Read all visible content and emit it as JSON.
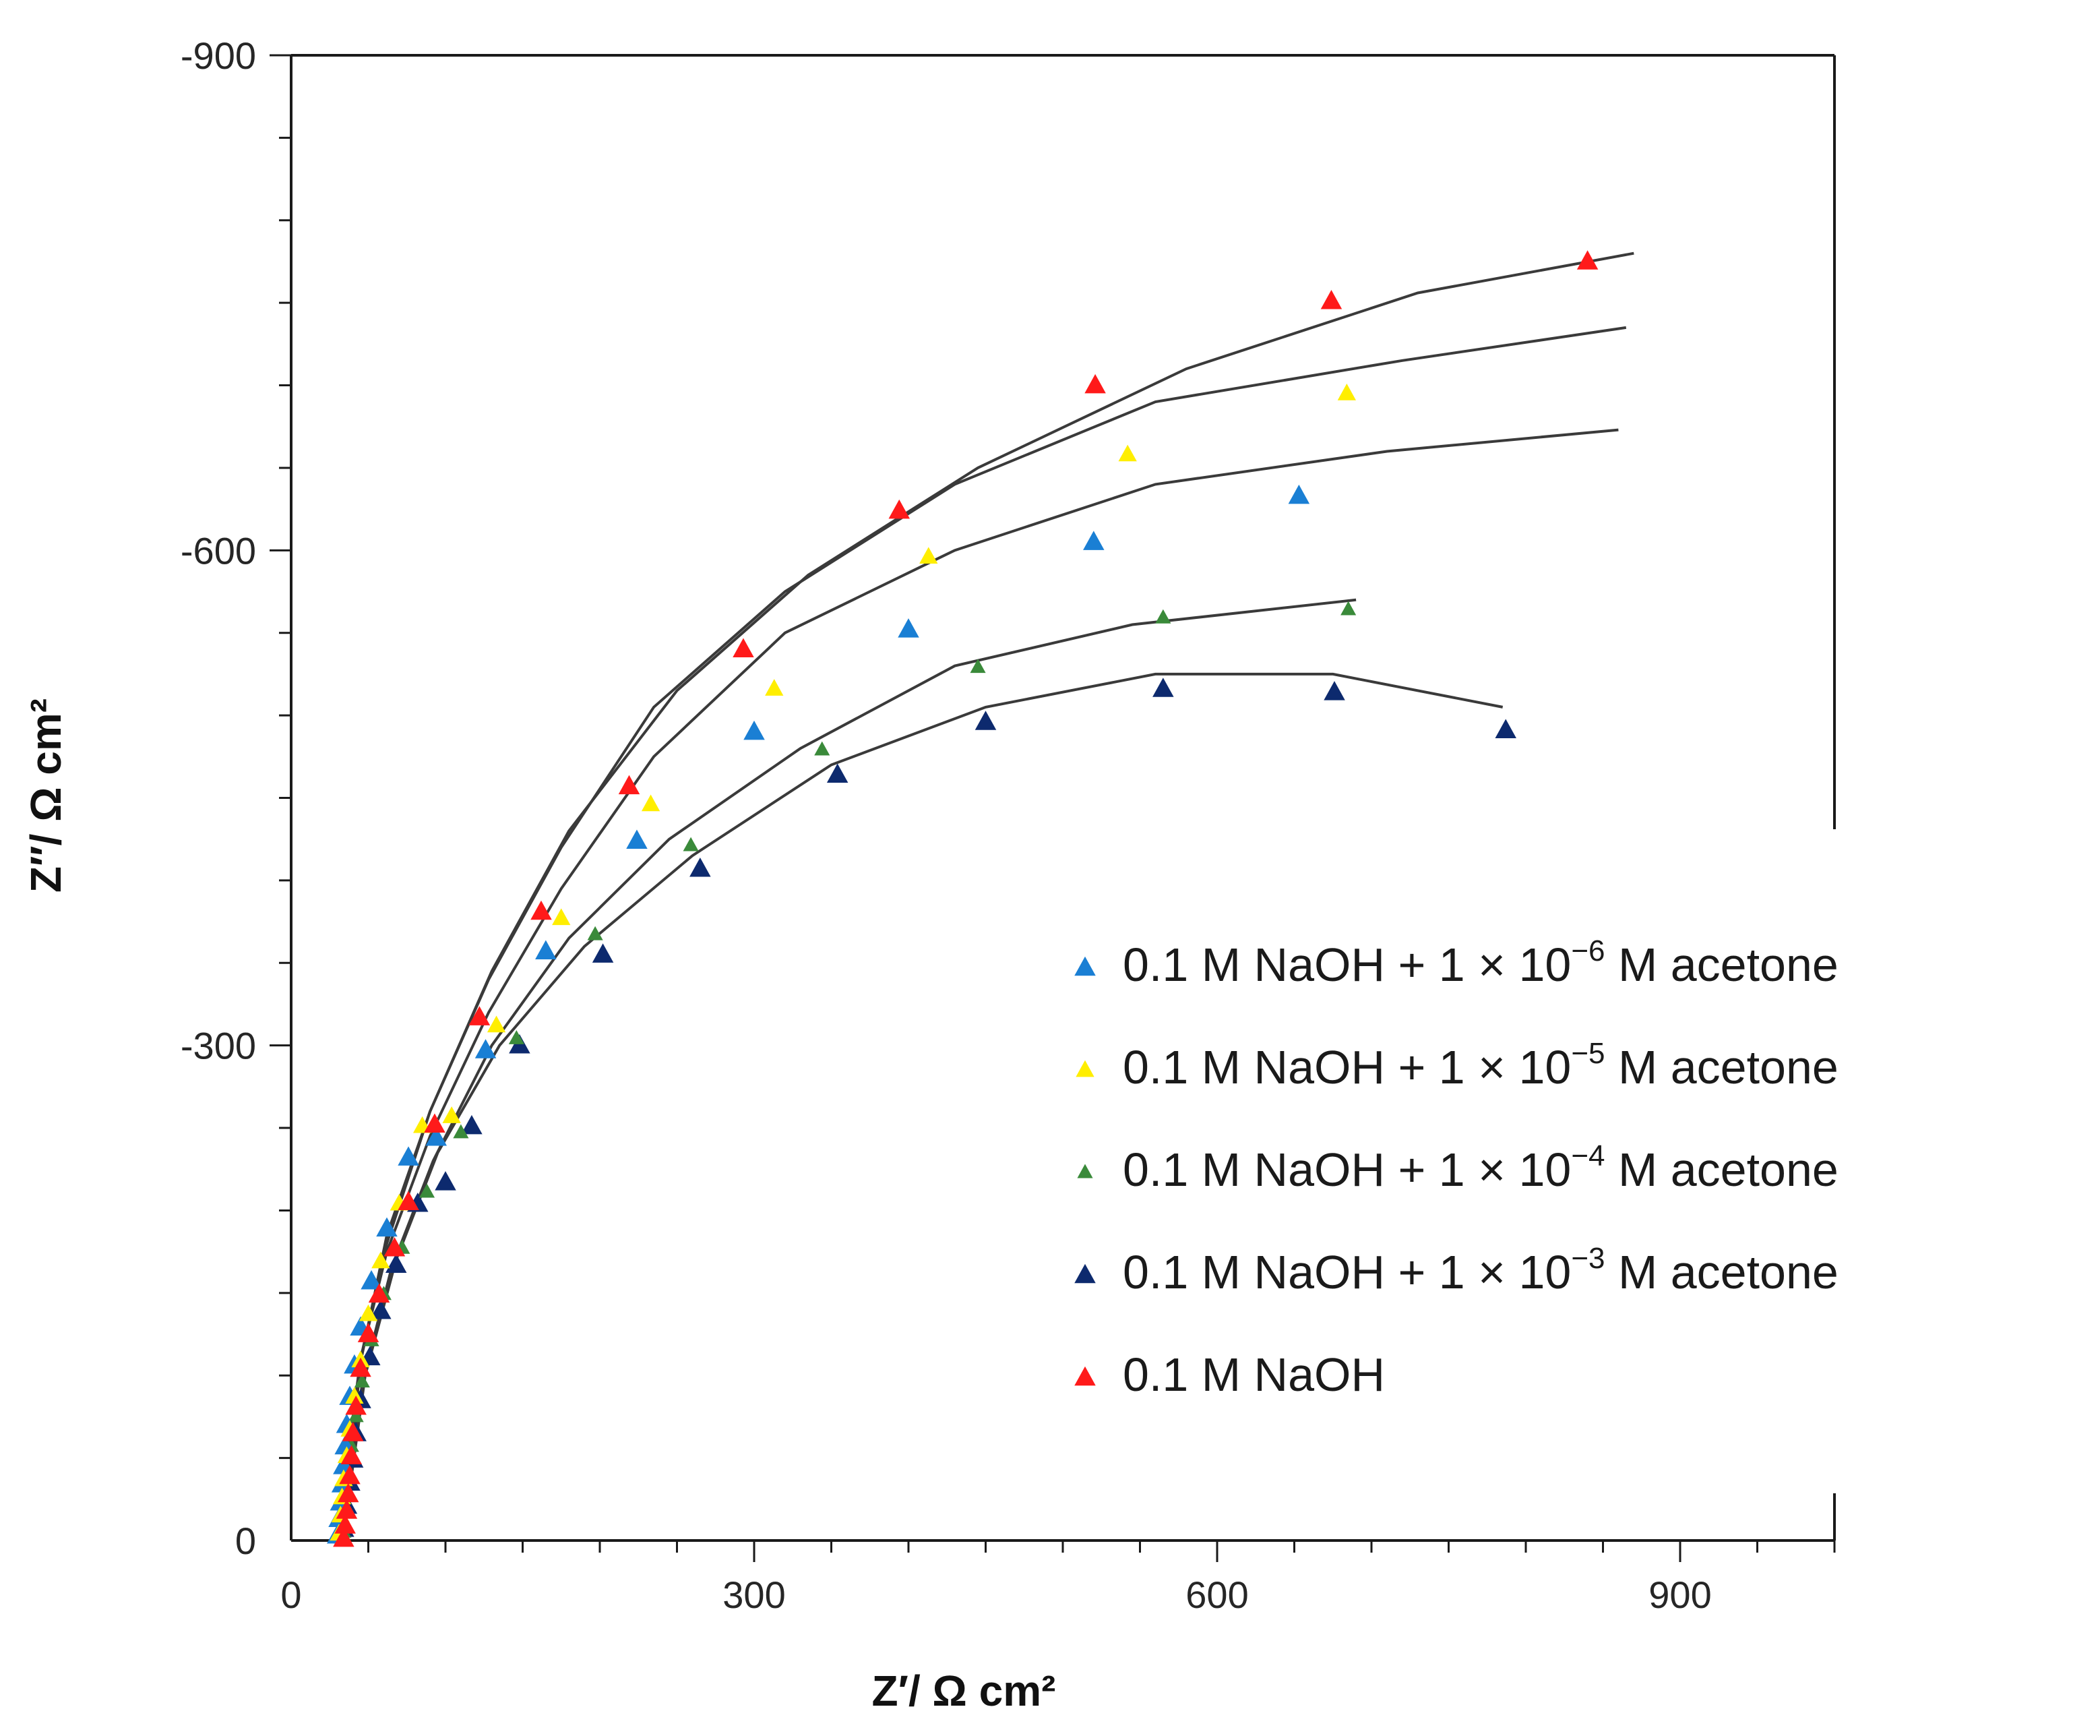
{
  "chart_data": {
    "type": "scatter",
    "title": "",
    "xlabel": "Z′/ Ω cm²",
    "ylabel": "Z″/ Ω cm²",
    "xlim": [
      0,
      1000
    ],
    "ylim": [
      0,
      -900
    ],
    "x_ticks": [
      0,
      300,
      600,
      900
    ],
    "y_ticks": [
      0,
      -300,
      -600,
      -900
    ],
    "x_tick_labels": [
      "0",
      "300",
      "600",
      "900"
    ],
    "y_tick_labels": [
      "0",
      "-300",
      "-600",
      "-900"
    ],
    "legend_position": "lower-right",
    "series": [
      {
        "name": "0.1 M NaOH + 1 × 10⁻⁶ M acetone",
        "legend_prefix": "0.1 M NaOH + 1 × 10",
        "legend_exp": "−6",
        "legend_suffix": " M acetone",
        "color": "#1a7fd4",
        "marker_size": 30,
        "points": [
          [
            30,
            -4
          ],
          [
            31,
            -14
          ],
          [
            32,
            -24
          ],
          [
            33,
            -35
          ],
          [
            34,
            -46
          ],
          [
            35,
            -58
          ],
          [
            36,
            -71
          ],
          [
            38,
            -88
          ],
          [
            41,
            -107
          ],
          [
            45,
            -130
          ],
          [
            52,
            -158
          ],
          [
            62,
            -190
          ],
          [
            76,
            -233
          ],
          [
            94,
            -245
          ],
          [
            126,
            -298
          ],
          [
            165,
            -358
          ],
          [
            224,
            -425
          ],
          [
            300,
            -491
          ],
          [
            400,
            -553
          ],
          [
            520,
            -606
          ],
          [
            653,
            -634
          ]
        ],
        "fit": [
          [
            30,
            -4
          ],
          [
            45,
            -110
          ],
          [
            62,
            -175
          ],
          [
            90,
            -245
          ],
          [
            128,
            -320
          ],
          [
            175,
            -395
          ],
          [
            235,
            -475
          ],
          [
            320,
            -550
          ],
          [
            430,
            -600
          ],
          [
            560,
            -640
          ],
          [
            710,
            -660
          ],
          [
            860,
            -673
          ]
        ]
      },
      {
        "name": "0.1 M NaOH + 1 × 10⁻⁵ M acetone",
        "legend_prefix": "0.1 M NaOH + 1 × 10",
        "legend_exp": "−5",
        "legend_suffix": " M acetone",
        "color": "#ffee00",
        "marker_size": 26,
        "points": [
          [
            31,
            -5
          ],
          [
            32,
            -16
          ],
          [
            33,
            -27
          ],
          [
            34,
            -38
          ],
          [
            36,
            -52
          ],
          [
            38,
            -68
          ],
          [
            41,
            -88
          ],
          [
            45,
            -110
          ],
          [
            50,
            -138
          ],
          [
            58,
            -170
          ],
          [
            70,
            -205
          ],
          [
            85,
            -252
          ],
          [
            104,
            -258
          ],
          [
            133,
            -313
          ],
          [
            175,
            -378
          ],
          [
            233,
            -447
          ],
          [
            313,
            -517
          ],
          [
            413,
            -597
          ],
          [
            542,
            -659
          ],
          [
            684,
            -696
          ]
        ],
        "fit": [
          [
            31,
            -4
          ],
          [
            45,
            -110
          ],
          [
            62,
            -180
          ],
          [
            90,
            -260
          ],
          [
            128,
            -340
          ],
          [
            175,
            -420
          ],
          [
            235,
            -505
          ],
          [
            320,
            -575
          ],
          [
            430,
            -640
          ],
          [
            560,
            -690
          ],
          [
            720,
            -715
          ],
          [
            865,
            -735
          ]
        ]
      },
      {
        "name": "0.1 M NaOH + 1 × 10⁻⁴ M acetone",
        "legend_prefix": "0.1 M NaOH + 1 × 10",
        "legend_exp": "−4",
        "legend_suffix": " M acetone",
        "color": "#3a8a3a",
        "marker_size": 22,
        "points": [
          [
            34,
            -6
          ],
          [
            35,
            -18
          ],
          [
            36,
            -30
          ],
          [
            37,
            -42
          ],
          [
            39,
            -58
          ],
          [
            42,
            -76
          ],
          [
            46,
            -97
          ],
          [
            52,
            -122
          ],
          [
            60,
            -150
          ],
          [
            72,
            -178
          ],
          [
            88,
            -212
          ],
          [
            110,
            -248
          ],
          [
            146,
            -305
          ],
          [
            197,
            -368
          ],
          [
            259,
            -422
          ],
          [
            344,
            -480
          ],
          [
            445,
            -530
          ],
          [
            565,
            -560
          ],
          [
            685,
            -565
          ]
        ],
        "fit": [
          [
            34,
            -4
          ],
          [
            46,
            -95
          ],
          [
            65,
            -165
          ],
          [
            92,
            -230
          ],
          [
            130,
            -300
          ],
          [
            180,
            -365
          ],
          [
            245,
            -425
          ],
          [
            330,
            -480
          ],
          [
            430,
            -530
          ],
          [
            545,
            -555
          ],
          [
            690,
            -570
          ]
        ]
      },
      {
        "name": "0.1 M NaOH + 1 × 10⁻³ M acetone",
        "legend_prefix": "0.1 M NaOH + 1 × 10",
        "legend_exp": "−3",
        "legend_suffix": " M acetone",
        "color": "#0d2a6e",
        "marker_size": 30,
        "points": [
          [
            34,
            -8
          ],
          [
            36,
            -22
          ],
          [
            38,
            -36
          ],
          [
            40,
            -50
          ],
          [
            42,
            -66
          ],
          [
            45,
            -86
          ],
          [
            51,
            -112
          ],
          [
            58,
            -140
          ],
          [
            68,
            -168
          ],
          [
            82,
            -205
          ],
          [
            100,
            -218
          ],
          [
            117,
            -252
          ],
          [
            148,
            -301
          ],
          [
            202,
            -356
          ],
          [
            265,
            -408
          ],
          [
            354,
            -465
          ],
          [
            450,
            -497
          ],
          [
            565,
            -517
          ],
          [
            676,
            -515
          ],
          [
            787,
            -492
          ]
        ],
        "fit": [
          [
            34,
            -4
          ],
          [
            48,
            -100
          ],
          [
            68,
            -170
          ],
          [
            95,
            -235
          ],
          [
            135,
            -300
          ],
          [
            190,
            -360
          ],
          [
            260,
            -415
          ],
          [
            350,
            -470
          ],
          [
            450,
            -505
          ],
          [
            560,
            -525
          ],
          [
            675,
            -525
          ],
          [
            785,
            -505
          ]
        ]
      },
      {
        "name": "0.1 M NaOH",
        "legend_prefix": "0.1 M NaOH",
        "legend_exp": "",
        "legend_suffix": "",
        "color": "#ff1a1a",
        "marker_size": 30,
        "points": [
          [
            34,
            -2
          ],
          [
            35,
            -10
          ],
          [
            36,
            -19
          ],
          [
            37,
            -29
          ],
          [
            38,
            -40
          ],
          [
            39,
            -52
          ],
          [
            40,
            -66
          ],
          [
            42,
            -82
          ],
          [
            45,
            -105
          ],
          [
            50,
            -126
          ],
          [
            57,
            -150
          ],
          [
            67,
            -178
          ],
          [
            76,
            -206
          ],
          [
            93,
            -253
          ],
          [
            122,
            -318
          ],
          [
            162,
            -382
          ],
          [
            219,
            -458
          ],
          [
            293,
            -541
          ],
          [
            394,
            -625
          ],
          [
            521,
            -701
          ],
          [
            674,
            -752
          ],
          [
            840,
            -776
          ]
        ],
        "fit": [
          [
            34,
            -2
          ],
          [
            45,
            -108
          ],
          [
            62,
            -185
          ],
          [
            90,
            -260
          ],
          [
            130,
            -345
          ],
          [
            180,
            -430
          ],
          [
            250,
            -515
          ],
          [
            335,
            -585
          ],
          [
            445,
            -650
          ],
          [
            580,
            -710
          ],
          [
            730,
            -756
          ],
          [
            870,
            -780
          ]
        ]
      }
    ]
  }
}
